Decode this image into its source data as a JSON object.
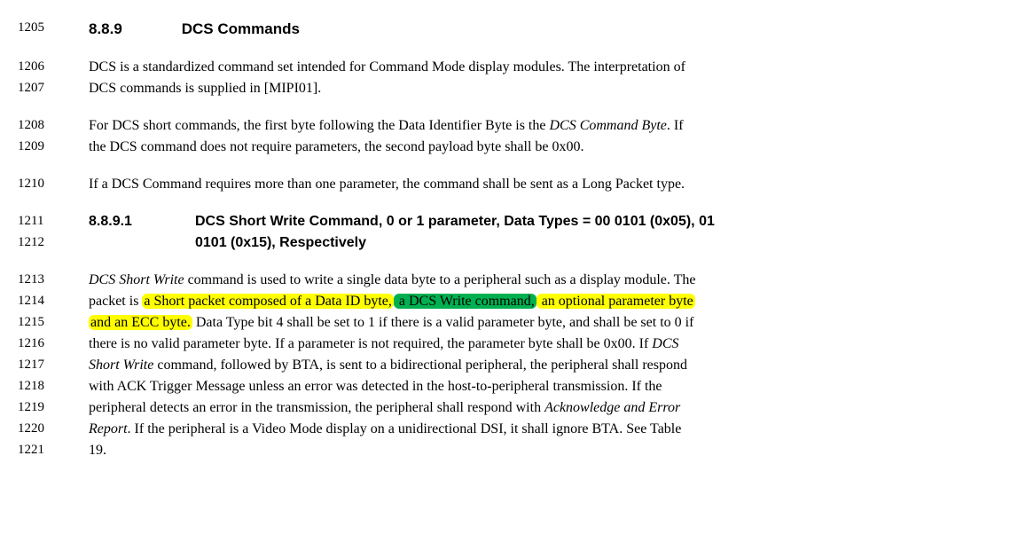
{
  "colors": {
    "bg": "#ffffff",
    "text": "#000000",
    "highlight_yellow": "#ffff00",
    "highlight_green": "#00b050"
  },
  "typography": {
    "body_font": "Times New Roman",
    "heading_font": "Arial",
    "body_size_pt": 12,
    "heading_size_pt": 13
  },
  "lines": {
    "l1205": "1205",
    "l1206": "1206",
    "l1207": "1207",
    "l1208": "1208",
    "l1209": "1209",
    "l1210": "1210",
    "l1211": "1211",
    "l1212": "1212",
    "l1213": "1213",
    "l1214": "1214",
    "l1215": "1215",
    "l1216": "1216",
    "l1217": "1217",
    "l1218": "1218",
    "l1219": "1219",
    "l1220": "1220",
    "l1221": "1221"
  },
  "heading": {
    "number": "8.8.9",
    "title": "DCS Commands"
  },
  "para1": {
    "line1": "DCS is a standardized command set intended for Command Mode display modules. The interpretation of",
    "line2": "DCS commands is supplied in [MIPI01]."
  },
  "para2": {
    "line1_pre": "For DCS short commands, the first byte following the Data Identifier Byte is the ",
    "line1_em": "DCS Command Byte",
    "line1_post": ". If",
    "line2": "the DCS command does not require parameters, the second payload byte shall be 0x00."
  },
  "para3": {
    "line1": "If a DCS Command requires more than one parameter, the command shall be sent as a Long Packet type."
  },
  "subheading": {
    "number": "8.8.9.1",
    "title_line1": "DCS Short Write Command, 0 or 1 parameter, Data Types = 00 0101 (0x05), 01",
    "title_line2": "0101 (0x15), Respectively"
  },
  "para4": {
    "l1_em1": "DCS Short Write",
    "l1_a": " command is used to write a single data byte to a peripheral such as a display module. The",
    "l2_a": "packet is ",
    "l2_hl1": "a Short packet composed of a Data ID byte,",
    "l2_hl2": " a DCS Write command,",
    "l2_hl3": " an optional parameter byte",
    "l3_hl1": "and an ECC byte.",
    "l3_a": " Data Type bit 4 shall be set to 1 if there is a valid parameter byte, and shall be set to 0 if",
    "l4_a": "there is no valid parameter byte. If a parameter is not required, the parameter byte shall be 0x00. If ",
    "l4_em": "DCS",
    "l5_em": "Short Write",
    "l5_a": " command, followed by BTA, is sent to a bidirectional peripheral, the peripheral shall respond",
    "l6_a": "with ACK Trigger Message unless an error was detected in the host-to-peripheral transmission. If the",
    "l7_a": "peripheral detects an error in the transmission, the peripheral shall respond with ",
    "l7_em": "Acknowledge and Error",
    "l8_em": "Report",
    "l8_a": ". If the peripheral is a Video Mode display on a unidirectional DSI, it shall ignore BTA. See Table",
    "l9_a": "19."
  }
}
